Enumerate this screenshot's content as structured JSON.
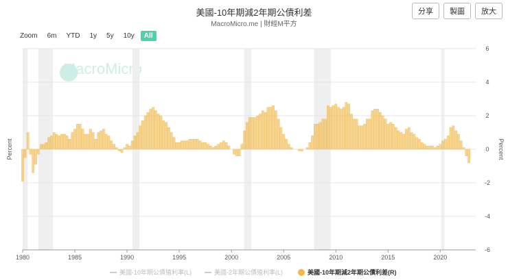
{
  "header": {
    "title": "美國-10年期減2年期公債利差",
    "subtitle": "MacroMicro.me | 財經M平方",
    "buttons": [
      "分享",
      "製圖",
      "放大"
    ],
    "watermark": "MacroMicro",
    "zoom_label": "Zoom",
    "zoom_options": [
      "6m",
      "YTD",
      "1y",
      "5y",
      "10y",
      "All"
    ],
    "zoom_active": "All"
  },
  "chart_data": {
    "type": "bar",
    "ylabel": "Percent",
    "y2label": "Percent",
    "xlim": [
      1980,
      2023.4
    ],
    "xticks": [
      1980,
      1985,
      1990,
      1995,
      2000,
      2005,
      2010,
      2015,
      2020
    ],
    "ylim": [
      -6,
      6
    ],
    "yticks": [
      -6,
      -4,
      -2,
      0,
      2,
      4,
      6
    ],
    "grid": true,
    "recessions": [
      [
        1980.0,
        1980.5
      ],
      [
        1981.5,
        1982.9
      ],
      [
        1990.5,
        1991.2
      ],
      [
        2001.2,
        2001.9
      ],
      [
        2007.9,
        2009.5
      ],
      [
        2020.1,
        2020.4
      ]
    ],
    "hidden_series": [
      "美國-10年期公債殖利率(L)",
      "美國-2年期公債殖利率(L)"
    ],
    "x": [
      1980,
      1980.25,
      1980.5,
      1980.75,
      1981,
      1981.25,
      1981.5,
      1981.75,
      1982,
      1982.25,
      1982.5,
      1982.75,
      1983,
      1983.25,
      1983.5,
      1983.75,
      1984,
      1984.25,
      1984.5,
      1984.75,
      1985,
      1985.25,
      1985.5,
      1985.75,
      1986,
      1986.25,
      1986.5,
      1986.75,
      1987,
      1987.25,
      1987.5,
      1987.75,
      1988,
      1988.25,
      1988.5,
      1988.75,
      1989,
      1989.25,
      1989.5,
      1989.75,
      1990,
      1990.25,
      1990.5,
      1990.75,
      1991,
      1991.25,
      1991.5,
      1991.75,
      1992,
      1992.25,
      1992.5,
      1992.75,
      1993,
      1993.25,
      1993.5,
      1993.75,
      1994,
      1994.25,
      1994.5,
      1994.75,
      1995,
      1995.25,
      1995.5,
      1995.75,
      1996,
      1996.25,
      1996.5,
      1996.75,
      1997,
      1997.25,
      1997.5,
      1997.75,
      1998,
      1998.25,
      1998.5,
      1998.75,
      1999,
      1999.25,
      1999.5,
      1999.75,
      2000,
      2000.25,
      2000.5,
      2000.75,
      2001,
      2001.25,
      2001.5,
      2001.75,
      2002,
      2002.25,
      2002.5,
      2002.75,
      2003,
      2003.25,
      2003.5,
      2003.75,
      2004,
      2004.25,
      2004.5,
      2004.75,
      2005,
      2005.25,
      2005.5,
      2005.75,
      2006,
      2006.25,
      2006.5,
      2006.75,
      2007,
      2007.25,
      2007.5,
      2007.75,
      2008,
      2008.25,
      2008.5,
      2008.75,
      2009,
      2009.25,
      2009.5,
      2009.75,
      2010,
      2010.25,
      2010.5,
      2010.75,
      2011,
      2011.25,
      2011.5,
      2011.75,
      2012,
      2012.25,
      2012.5,
      2012.75,
      2013,
      2013.25,
      2013.5,
      2013.75,
      2014,
      2014.25,
      2014.5,
      2014.75,
      2015,
      2015.25,
      2015.5,
      2015.75,
      2016,
      2016.25,
      2016.5,
      2016.75,
      2017,
      2017.25,
      2017.5,
      2017.75,
      2018,
      2018.25,
      2018.5,
      2018.75,
      2019,
      2019.25,
      2019.5,
      2019.75,
      2020,
      2020.25,
      2020.5,
      2020.75,
      2021,
      2021.25,
      2021.5,
      2021.75,
      2022,
      2022.25,
      2022.5,
      2022.75
    ],
    "series": [
      {
        "name": "美國-10年期減2年期公債利差(R)",
        "color": "#f0b94a",
        "axis": "y2",
        "values": [
          -1.9,
          -0.5,
          1.0,
          -0.3,
          -1.4,
          -0.9,
          -0.3,
          0.3,
          0.3,
          0.4,
          0.7,
          0.8,
          1.0,
          0.9,
          0.8,
          0.9,
          0.9,
          0.8,
          0.6,
          1.0,
          1.2,
          1.5,
          1.5,
          1.2,
          0.9,
          0.9,
          1.2,
          1.0,
          0.6,
          1.0,
          1.1,
          1.2,
          0.9,
          0.8,
          0.5,
          0.3,
          0.1,
          -0.1,
          -0.2,
          0.1,
          0.3,
          0.2,
          0.5,
          0.8,
          1.0,
          1.4,
          1.7,
          2.0,
          2.2,
          2.4,
          2.5,
          2.3,
          2.1,
          2.0,
          1.7,
          1.6,
          1.3,
          1.0,
          0.7,
          0.4,
          0.4,
          0.5,
          0.5,
          0.5,
          0.6,
          0.6,
          0.6,
          0.6,
          0.5,
          0.4,
          0.4,
          0.3,
          0.2,
          0.1,
          0.2,
          0.3,
          0.4,
          0.5,
          0.4,
          0.2,
          0.0,
          -0.3,
          -0.4,
          -0.4,
          0.3,
          1.1,
          1.6,
          1.9,
          1.9,
          1.9,
          2.0,
          2.1,
          2.3,
          2.2,
          2.5,
          2.5,
          2.6,
          2.3,
          1.8,
          1.3,
          0.9,
          0.6,
          0.3,
          0.1,
          0.0,
          0.0,
          -0.1,
          -0.1,
          0.0,
          0.1,
          0.4,
          0.8,
          1.5,
          1.5,
          1.6,
          1.8,
          1.8,
          2.6,
          2.5,
          2.6,
          2.7,
          2.5,
          2.4,
          2.5,
          2.8,
          2.7,
          2.1,
          1.8,
          1.8,
          1.4,
          1.4,
          1.5,
          1.8,
          1.8,
          2.3,
          2.4,
          2.4,
          2.2,
          2.0,
          1.8,
          1.5,
          1.6,
          1.5,
          1.3,
          1.1,
          1.0,
          0.9,
          1.2,
          1.3,
          1.0,
          0.9,
          0.7,
          0.6,
          0.4,
          0.3,
          0.2,
          0.2,
          0.2,
          0.1,
          0.2,
          0.3,
          0.5,
          0.6,
          0.8,
          1.3,
          1.4,
          1.1,
          0.9,
          0.5,
          0.1,
          -0.4,
          -0.8
        ]
      }
    ]
  }
}
